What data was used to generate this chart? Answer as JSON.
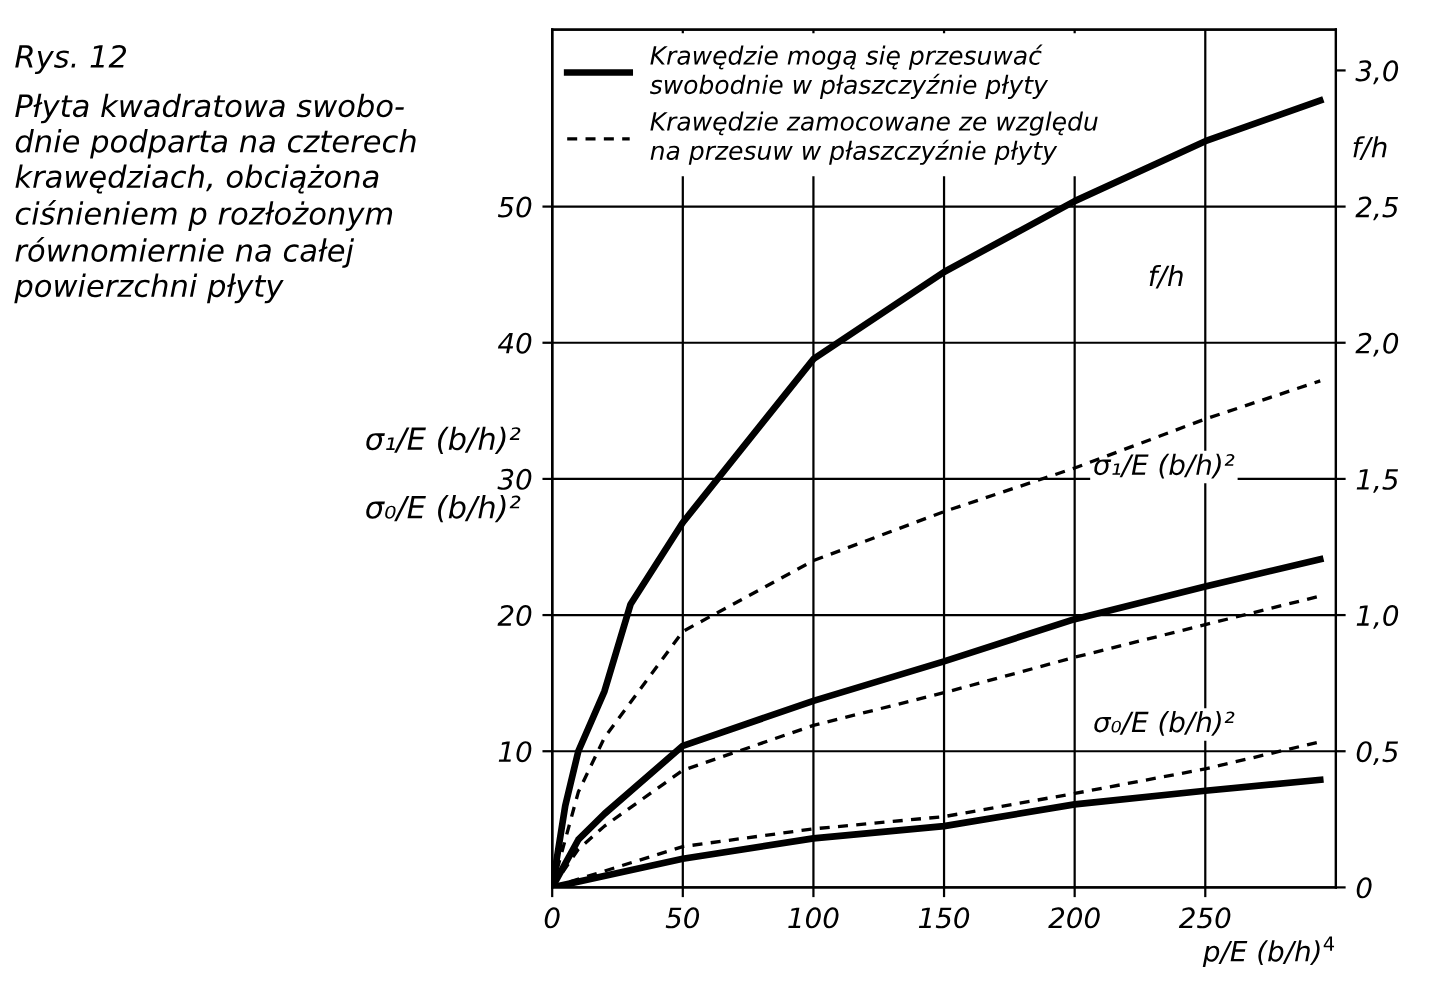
{
  "chart_data": {
    "type": "line",
    "title": "Rys. 12",
    "subtitle": "Płyta kwadratowa swobo-\ndnie podparta na czterech\nkrawędziach, obciążona\nciśnieniem p rozłożonym\nrównomiernie na całej\npowierzchni płyty",
    "xlabel": "p/E (b/h)$^{4}$",
    "ylabel": "σ₁/E (b/h)²\n\nσ₀/E (b/h)²",
    "y2label": "f/h",
    "series": [
      {
        "name": "Krawędzie mogą się przesuwać\nswobodnie w płaszczyźnie płyty",
        "color": "#000000",
        "line_style": "solid",
        "axis": "y2",
        "x": [
          0,
          5,
          10,
          20,
          30,
          50,
          100,
          150,
          200,
          250,
          294
        ],
        "values": [
          0,
          0.3,
          0.5,
          0.72,
          1.04,
          1.34,
          1.94,
          2.26,
          2.52,
          2.74,
          2.89
        ]
      },
      {
        "name": "Krawędzie zamocowane ze względu\nna przesuw w płaszczyźnie płyty",
        "color": "#000000",
        "line_style": "dashed",
        "axis": "y2",
        "x": [
          0,
          10,
          20,
          50,
          100,
          150,
          200,
          250,
          294
        ],
        "values": [
          0,
          0.35,
          0.55,
          0.94,
          1.2,
          1.38,
          1.54,
          1.72,
          1.86
        ]
      },
      {
        "color": "#000000",
        "line_style": "solid",
        "x": [
          0,
          10,
          20,
          50,
          100,
          150,
          200,
          250,
          294
        ],
        "values": [
          0,
          3.5,
          5.4,
          10.4,
          13.7,
          16.6,
          19.7,
          22.1,
          24.1
        ]
      },
      {
        "color": "#000000",
        "line_style": "dashed",
        "x": [
          0,
          10,
          20,
          50,
          100,
          150,
          200,
          250,
          294
        ],
        "values": [
          0,
          2.8,
          4.5,
          8.6,
          11.9,
          14.3,
          16.9,
          19.3,
          21.4
        ]
      },
      {
        "color": "#000000",
        "line_style": "dashed",
        "x": [
          0,
          50,
          100,
          150,
          200,
          250,
          294
        ],
        "values": [
          0,
          3.0,
          4.3,
          5.2,
          6.9,
          8.7,
          10.7
        ]
      },
      {
        "color": "#000000",
        "line_style": "solid",
        "x": [
          0,
          50,
          100,
          150,
          200,
          250,
          294
        ],
        "values": [
          0,
          2.1,
          3.6,
          4.5,
          6.1,
          7.1,
          7.9
        ]
      }
    ],
    "annotations": [
      "f/h",
      "σ₁/E (b/h)²",
      "σ₀/E (b/h)²"
    ],
    "xlim": [
      0,
      300
    ],
    "xticks": [
      0,
      50,
      100,
      150,
      200,
      250
    ],
    "ylim": [
      0,
      63
    ],
    "yticks": [
      10,
      20,
      30,
      40,
      50
    ],
    "y2lim": [
      0,
      3.15
    ],
    "y2ticks": [
      {
        "value": 0,
        "label": "0"
      },
      {
        "value": 0.5,
        "label": "0,5"
      },
      {
        "value": 1.0,
        "label": "1,0"
      },
      {
        "value": 1.5,
        "label": "1,5"
      },
      {
        "value": 2.0,
        "label": "2,0"
      },
      {
        "value": 2.5,
        "label": "2,5"
      },
      {
        "value": 3.0,
        "label": "3,0"
      }
    ],
    "grid": true,
    "legend": "top"
  }
}
